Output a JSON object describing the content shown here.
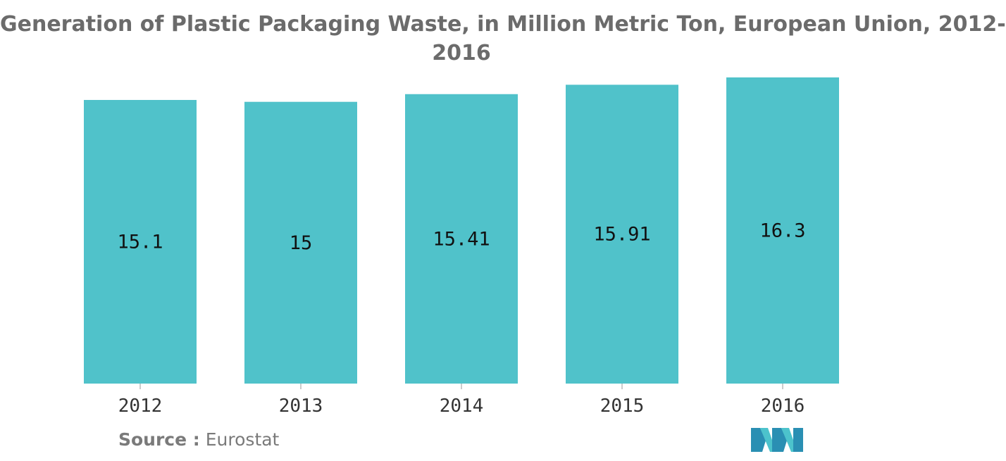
{
  "chart_data": {
    "type": "bar",
    "title": "Generation of Plastic Packaging Waste, in Million Metric Ton, European Union, 2012-2016",
    "title_line1": "Generation of Plastic Packaging Waste, in Million Metric Ton, European Union, 2012-",
    "title_line2": "2016",
    "categories": [
      "2012",
      "2013",
      "2014",
      "2015",
      "2016"
    ],
    "values": [
      15.1,
      15,
      15.41,
      15.91,
      16.3
    ],
    "data_labels": [
      "15.1",
      "15",
      "15.41",
      "15.91",
      "16.3"
    ],
    "bar_color": "#50c2ca",
    "ylim": [
      0,
      16.3
    ],
    "grid": false,
    "legend": "none",
    "xlabel": "",
    "ylabel": ""
  },
  "footer": {
    "source_key": "Source :",
    "source_value": "Eurostat"
  },
  "logo": {
    "icon": "mordor-intelligence-logo-icon",
    "colors": [
      "#2a8fb3",
      "#4cc3cc"
    ]
  }
}
